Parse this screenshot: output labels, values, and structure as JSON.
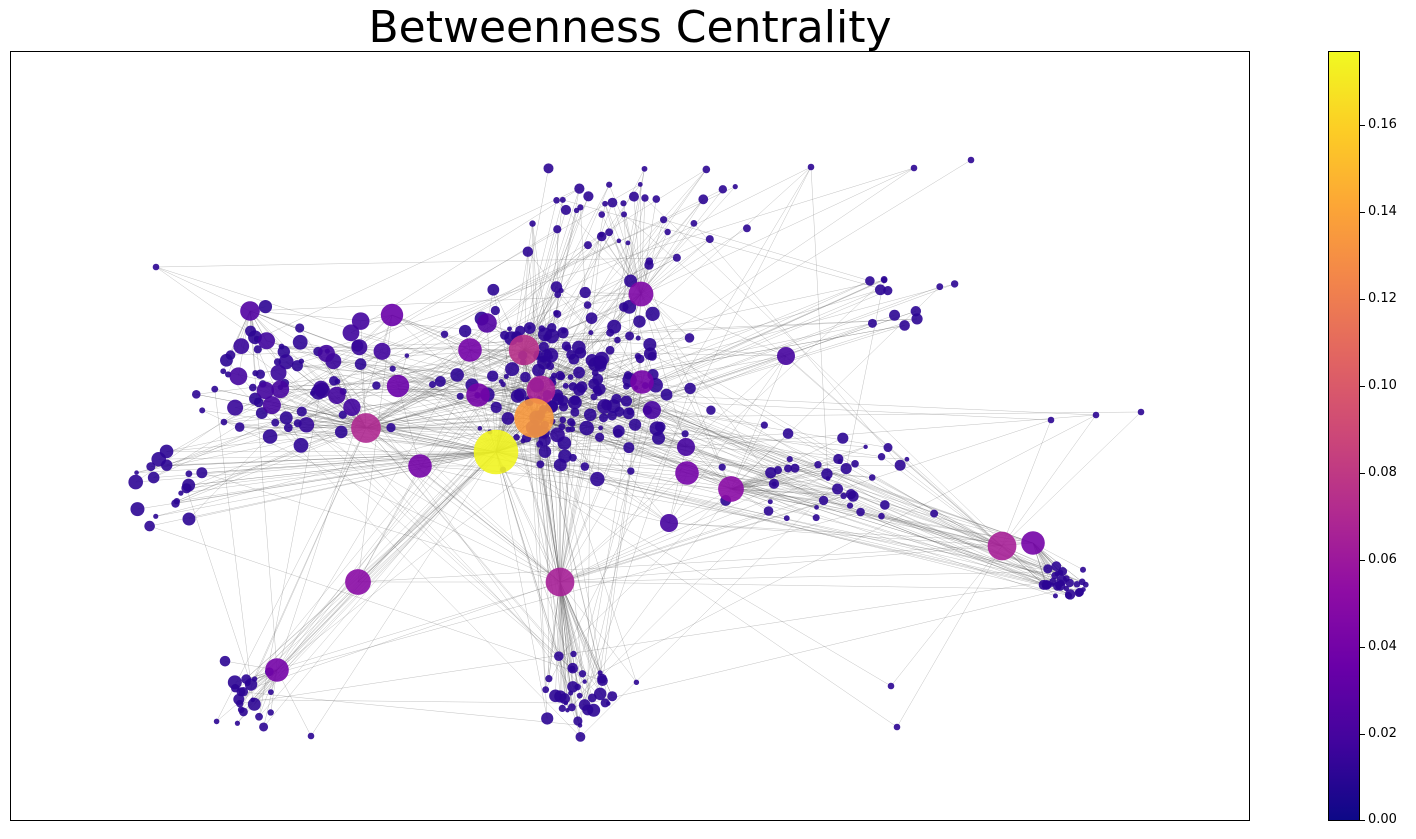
{
  "chart_data": {
    "type": "scatter",
    "subtype": "network-graph",
    "title": "Betweenness Centrality",
    "xlabel": "",
    "ylabel": "",
    "xlim": [
      0,
      1240
    ],
    "ylim": [
      0,
      770
    ],
    "grid": false,
    "axes_ticks": false,
    "colormap": "plasma",
    "colorbar": {
      "min": 0.0,
      "max": 0.177,
      "ticks": [
        "0.00",
        "0.02",
        "0.04",
        "0.06",
        "0.08",
        "0.10",
        "0.12",
        "0.14",
        "0.16"
      ],
      "tick_values": [
        0.0,
        0.02,
        0.04,
        0.06,
        0.08,
        0.1,
        0.12,
        0.14,
        0.16
      ]
    },
    "edge_color": "#555555",
    "hubs": [
      {
        "x": 485,
        "y": 400,
        "centrality": 0.175
      },
      {
        "x": 523,
        "y": 366,
        "centrality": 0.135
      },
      {
        "x": 513,
        "y": 298,
        "centrality": 0.075
      },
      {
        "x": 530,
        "y": 338,
        "centrality": 0.065
      },
      {
        "x": 355,
        "y": 376,
        "centrality": 0.07
      },
      {
        "x": 549,
        "y": 530,
        "centrality": 0.065
      },
      {
        "x": 991,
        "y": 494,
        "centrality": 0.065
      },
      {
        "x": 347,
        "y": 530,
        "centrality": 0.05
      },
      {
        "x": 720,
        "y": 437,
        "centrality": 0.05
      },
      {
        "x": 459,
        "y": 298,
        "centrality": 0.04
      },
      {
        "x": 467,
        "y": 343,
        "centrality": 0.04
      },
      {
        "x": 630,
        "y": 242,
        "centrality": 0.045
      },
      {
        "x": 1022,
        "y": 491,
        "centrality": 0.04
      },
      {
        "x": 676,
        "y": 421,
        "centrality": 0.04
      },
      {
        "x": 381,
        "y": 263,
        "centrality": 0.035
      },
      {
        "x": 387,
        "y": 334,
        "centrality": 0.035
      },
      {
        "x": 631,
        "y": 330,
        "centrality": 0.04
      },
      {
        "x": 409,
        "y": 414,
        "centrality": 0.04
      },
      {
        "x": 266,
        "y": 618,
        "centrality": 0.04
      },
      {
        "x": 239,
        "y": 259,
        "centrality": 0.025
      },
      {
        "x": 476,
        "y": 271,
        "centrality": 0.025
      },
      {
        "x": 775,
        "y": 304,
        "centrality": 0.02
      },
      {
        "x": 658,
        "y": 471,
        "centrality": 0.02
      },
      {
        "x": 641,
        "y": 358,
        "centrality": 0.02
      },
      {
        "x": 675,
        "y": 395,
        "centrality": 0.02
      }
    ]
  }
}
